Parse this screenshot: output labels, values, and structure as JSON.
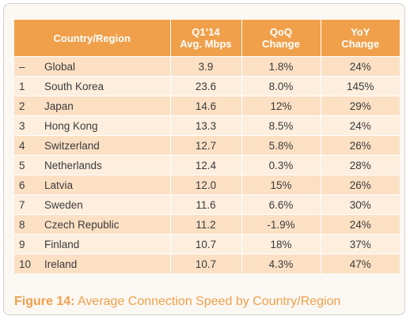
{
  "table": {
    "headers": {
      "country": "Country/Region",
      "avg_line1": "Q1’14",
      "avg_line2": "Avg. Mbps",
      "qoq_line1": "QoQ",
      "qoq_line2": "Change",
      "yoy_line1": "YoY",
      "yoy_line2": "Change"
    },
    "rows": [
      {
        "rank": "–",
        "name": "Global",
        "avg": "3.9",
        "qoq": "1.8%",
        "yoy": "24%"
      },
      {
        "rank": "1",
        "name": "South Korea",
        "avg": "23.6",
        "qoq": "8.0%",
        "yoy": "145%"
      },
      {
        "rank": "2",
        "name": "Japan",
        "avg": "14.6",
        "qoq": "12%",
        "yoy": "29%"
      },
      {
        "rank": "3",
        "name": "Hong Kong",
        "avg": "13.3",
        "qoq": "8.5%",
        "yoy": "24%"
      },
      {
        "rank": "4",
        "name": "Switzerland",
        "avg": "12.7",
        "qoq": "5.8%",
        "yoy": "26%"
      },
      {
        "rank": "5",
        "name": "Netherlands",
        "avg": "12.4",
        "qoq": "0.3%",
        "yoy": "28%"
      },
      {
        "rank": "6",
        "name": "Latvia",
        "avg": "12.0",
        "qoq": "15%",
        "yoy": "26%"
      },
      {
        "rank": "7",
        "name": "Sweden",
        "avg": "11.6",
        "qoq": "6.6%",
        "yoy": "30%"
      },
      {
        "rank": "8",
        "name": "Czech Republic",
        "avg": "11.2",
        "qoq": "-1.9%",
        "yoy": "24%"
      },
      {
        "rank": "9",
        "name": "Finland",
        "avg": "10.7",
        "qoq": "18%",
        "yoy": "37%"
      },
      {
        "rank": "10",
        "name": "Ireland",
        "avg": "10.7",
        "qoq": "4.3%",
        "yoy": "47%"
      }
    ]
  },
  "caption": {
    "label": "Figure 14:",
    "text": " Average Connection Speed by Country/Region"
  },
  "colors": {
    "header_bg": "#f0a04b",
    "row_dark": "#fbe0c4",
    "row_light": "#fdeedd",
    "caption": "#f0a04b"
  }
}
